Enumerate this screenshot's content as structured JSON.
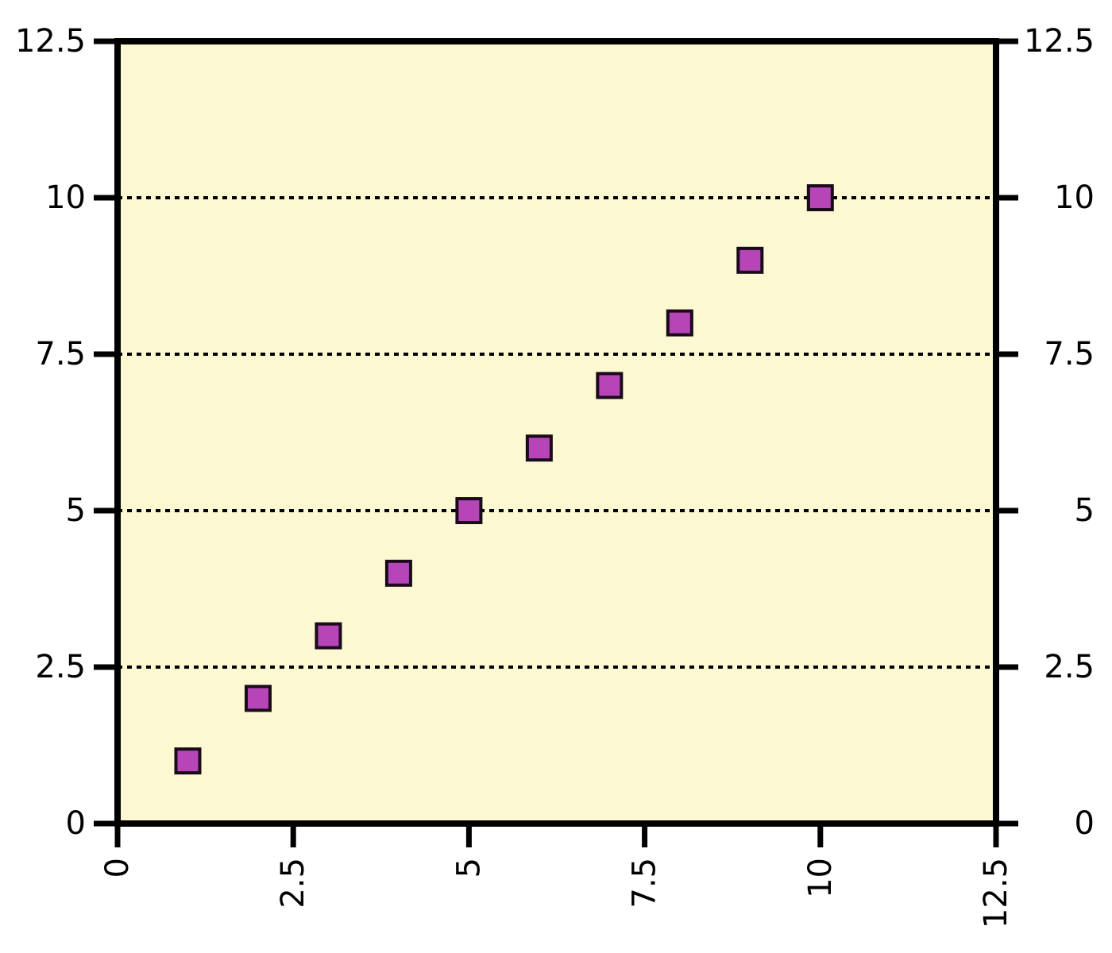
{
  "chart_data": {
    "type": "scatter",
    "title": "",
    "xlabel": "",
    "ylabel": "",
    "xlim": [
      0,
      12.5
    ],
    "ylim": [
      0,
      12.5
    ],
    "x_ticks": [
      "0",
      "2.5",
      "5",
      "7.5",
      "10",
      "12.5"
    ],
    "y_ticks": [
      "0",
      "2.5",
      "5",
      "7.5",
      "10",
      "12.5"
    ],
    "grid": "horizontal dotted",
    "mirrored_right_axis": true,
    "x_tick_label_rotation": "vertical",
    "series": [
      {
        "marker": "square",
        "points": [
          {
            "x": 1,
            "y": 1
          },
          {
            "x": 2,
            "y": 2
          },
          {
            "x": 3,
            "y": 3
          },
          {
            "x": 4,
            "y": 4
          },
          {
            "x": 5,
            "y": 5
          },
          {
            "x": 6,
            "y": 6
          },
          {
            "x": 7,
            "y": 7
          },
          {
            "x": 8,
            "y": 8
          },
          {
            "x": 9,
            "y": 9
          },
          {
            "x": 10,
            "y": 10
          }
        ]
      }
    ],
    "colors": {
      "plot_background": "#fbf8d2",
      "marker_fill": "#b646b7",
      "marker_stroke": "#1a0a1a",
      "axis": "#000000",
      "grid": "#000000"
    }
  }
}
